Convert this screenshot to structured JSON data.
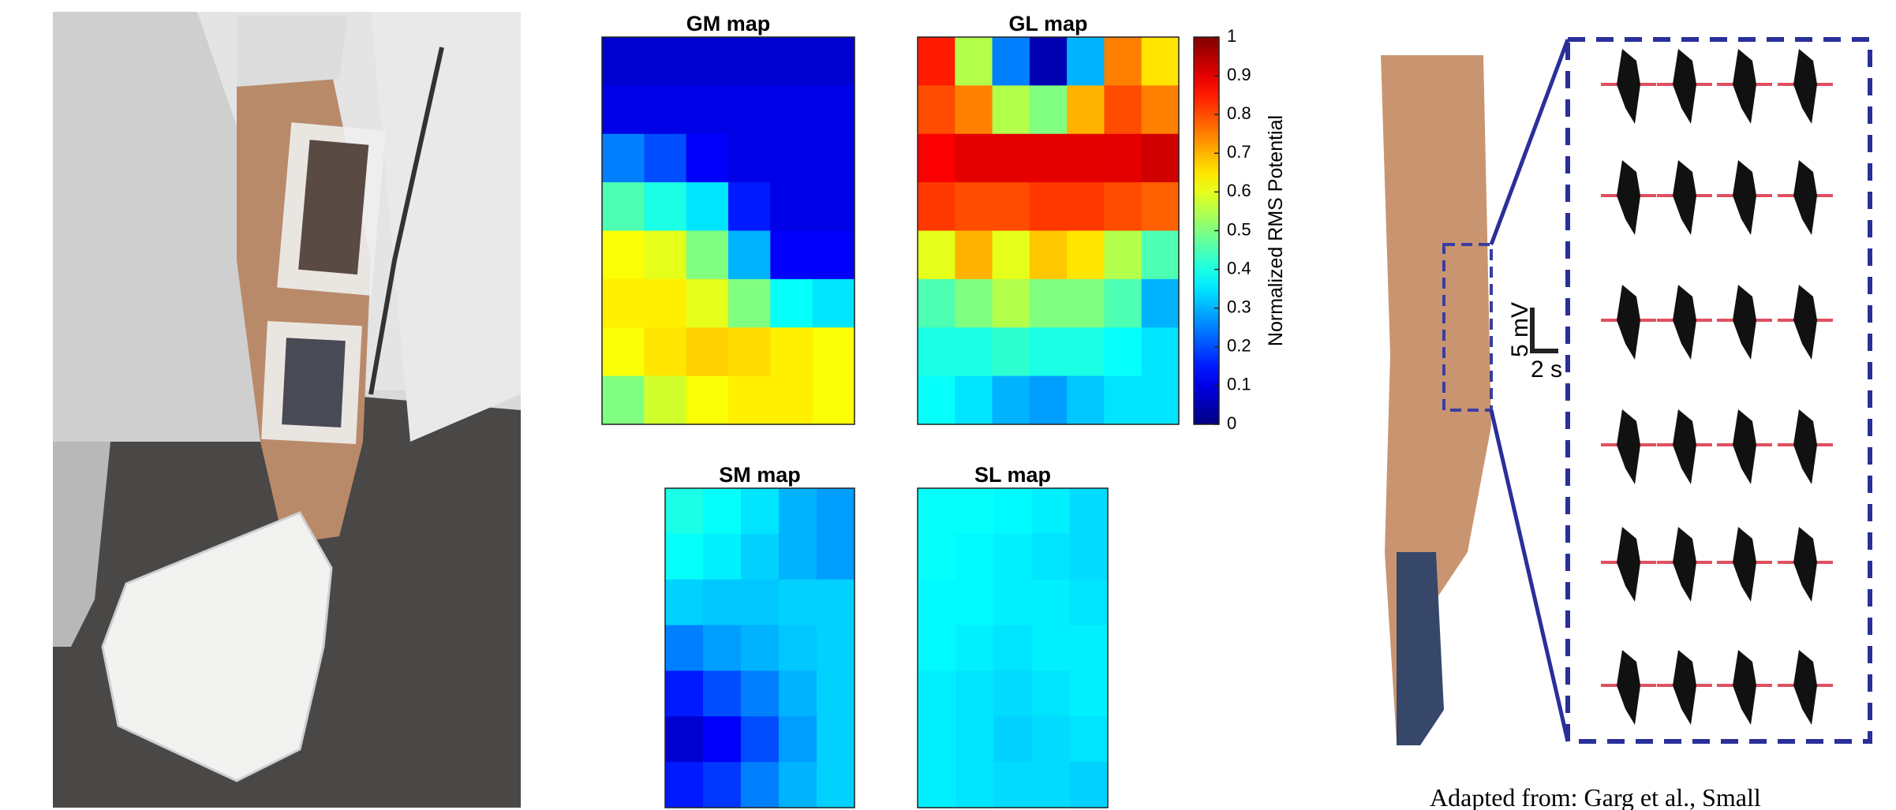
{
  "chart_data": [
    {
      "type": "heatmap",
      "title": "GM map",
      "values": [
        [
          0.08,
          0.08,
          0.08,
          0.08,
          0.08,
          0.08
        ],
        [
          0.1,
          0.1,
          0.1,
          0.1,
          0.1,
          0.1
        ],
        [
          0.25,
          0.2,
          0.12,
          0.1,
          0.1,
          0.1
        ],
        [
          0.45,
          0.4,
          0.35,
          0.15,
          0.1,
          0.1
        ],
        [
          0.62,
          0.6,
          0.5,
          0.3,
          0.12,
          0.12
        ],
        [
          0.64,
          0.64,
          0.6,
          0.5,
          0.38,
          0.35
        ],
        [
          0.62,
          0.65,
          0.67,
          0.66,
          0.64,
          0.62
        ],
        [
          0.5,
          0.58,
          0.62,
          0.64,
          0.64,
          0.62
        ]
      ]
    },
    {
      "type": "heatmap",
      "title": "GL map",
      "values": [
        [
          0.85,
          0.55,
          0.25,
          0.05,
          0.3,
          0.75,
          0.65
        ],
        [
          0.8,
          0.75,
          0.55,
          0.5,
          0.7,
          0.8,
          0.75
        ],
        [
          0.88,
          0.9,
          0.9,
          0.9,
          0.9,
          0.9,
          0.92
        ],
        [
          0.82,
          0.8,
          0.8,
          0.82,
          0.82,
          0.8,
          0.78
        ],
        [
          0.6,
          0.7,
          0.6,
          0.68,
          0.65,
          0.55,
          0.45
        ],
        [
          0.45,
          0.5,
          0.55,
          0.5,
          0.5,
          0.45,
          0.3
        ],
        [
          0.4,
          0.4,
          0.42,
          0.4,
          0.4,
          0.38,
          0.35
        ],
        [
          0.38,
          0.35,
          0.3,
          0.28,
          0.32,
          0.35,
          0.35
        ]
      ]
    },
    {
      "type": "heatmap",
      "title": "SM map",
      "values": [
        [
          0.4,
          0.38,
          0.35,
          0.3,
          0.28
        ],
        [
          0.38,
          0.36,
          0.33,
          0.3,
          0.28
        ],
        [
          0.33,
          0.32,
          0.32,
          0.33,
          0.33
        ],
        [
          0.25,
          0.28,
          0.3,
          0.32,
          0.33
        ],
        [
          0.15,
          0.2,
          0.25,
          0.3,
          0.33
        ],
        [
          0.08,
          0.12,
          0.2,
          0.28,
          0.33
        ],
        [
          0.15,
          0.18,
          0.25,
          0.3,
          0.33
        ]
      ]
    },
    {
      "type": "heatmap",
      "title": "SL map",
      "values": [
        [
          0.38,
          0.38,
          0.37,
          0.36,
          0.34
        ],
        [
          0.38,
          0.37,
          0.36,
          0.35,
          0.34
        ],
        [
          0.37,
          0.37,
          0.36,
          0.36,
          0.35
        ],
        [
          0.37,
          0.36,
          0.35,
          0.36,
          0.36
        ],
        [
          0.36,
          0.35,
          0.34,
          0.35,
          0.36
        ],
        [
          0.36,
          0.35,
          0.33,
          0.34,
          0.35
        ],
        [
          0.36,
          0.35,
          0.34,
          0.34,
          0.33
        ]
      ]
    }
  ],
  "colorbar": {
    "label": "Normalized RMS Potential",
    "lim": [
      0,
      1
    ],
    "ticks": [
      0,
      0.1,
      0.2,
      0.3,
      0.4,
      0.5,
      0.6,
      0.7,
      0.8,
      0.9,
      1
    ]
  },
  "figure": {
    "scale_y": "5 mV",
    "scale_x": "2 s",
    "caption": "Adapted from: Garg et al., Small"
  }
}
